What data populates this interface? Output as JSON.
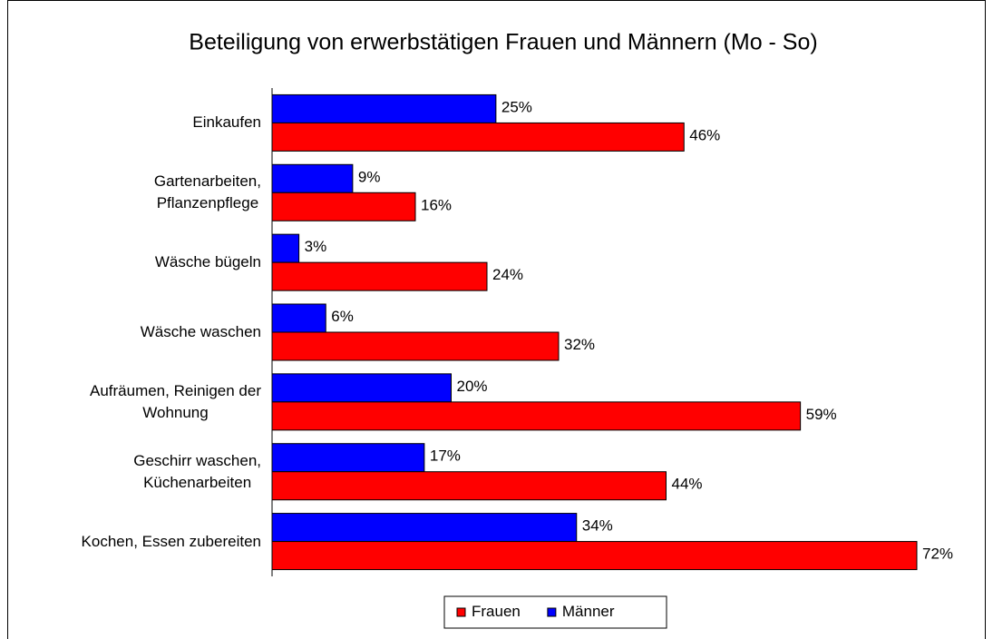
{
  "chart_data": {
    "type": "hbar",
    "title": "Beteiligung von erwerbstätigen Frauen und Männern (Mo - So)",
    "categories": [
      "Einkaufen",
      "Gartenarbeiten,\nPflanzenpflege",
      "Wäsche bügeln",
      "Wäsche waschen",
      "Aufräumen, Reinigen der\nWohnung",
      "Geschirr waschen,\nKüchenarbeiten",
      "Kochen, Essen zubereiten"
    ],
    "series": [
      {
        "name": "Frauen",
        "color": "#ff0000",
        "values": [
          46,
          16,
          24,
          32,
          59,
          44,
          72
        ],
        "value_labels": [
          "46%",
          "16%",
          "24%",
          "32%",
          "59%",
          "44%",
          "72%"
        ]
      },
      {
        "name": "Männer",
        "color": "#0000ff",
        "values": [
          25,
          9,
          3,
          6,
          20,
          17,
          34
        ],
        "value_labels": [
          "25%",
          "9%",
          "3%",
          "6%",
          "20%",
          "17%",
          "34%"
        ]
      }
    ],
    "xlim": [
      0,
      80
    ],
    "legend": "bottom"
  }
}
